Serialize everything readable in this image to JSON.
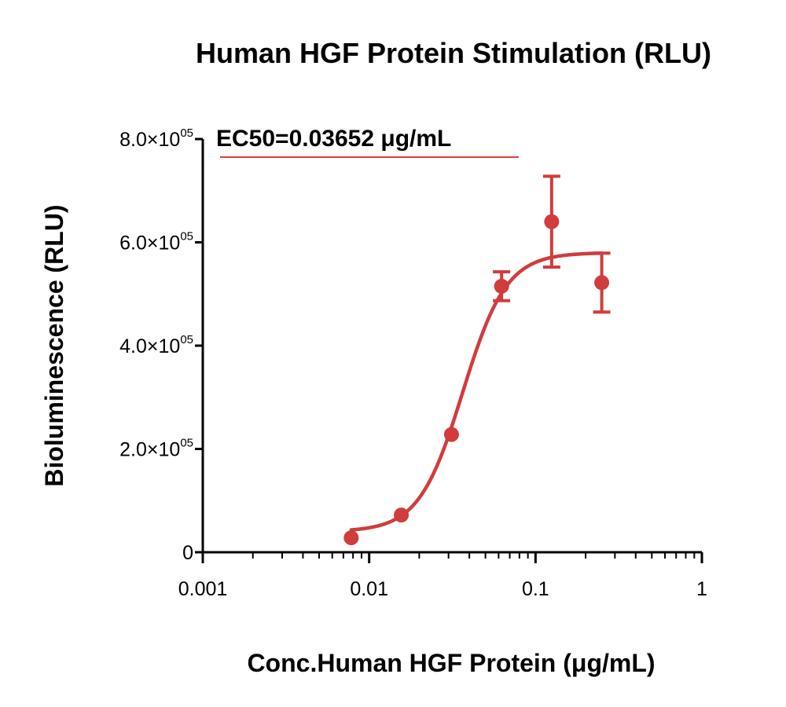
{
  "chart_data": {
    "type": "scatter",
    "title": "Human HGF Protein Stimulation (RLU)",
    "xlabel": "Conc.Human HGF Protein (μg/mL)",
    "ylabel": "Bioluminescence (RLU)",
    "x_scale": "log",
    "xlim": [
      0.001,
      1
    ],
    "ylim": [
      0,
      800000
    ],
    "x_ticks": [
      {
        "value": 0.001,
        "label": "0.001"
      },
      {
        "value": 0.01,
        "label": "0.01"
      },
      {
        "value": 0.1,
        "label": "0.1"
      },
      {
        "value": 1,
        "label": "1"
      }
    ],
    "y_ticks": [
      {
        "value": 0,
        "mantissa": "0",
        "exponent": ""
      },
      {
        "value": 200000,
        "mantissa": "2.0×10",
        "exponent": "05"
      },
      {
        "value": 400000,
        "mantissa": "4.0×10",
        "exponent": "05"
      },
      {
        "value": 600000,
        "mantissa": "6.0×10",
        "exponent": "05"
      },
      {
        "value": 800000,
        "mantissa": "8.0×10",
        "exponent": "05"
      }
    ],
    "series": [
      {
        "color": "#d13c3c",
        "points": [
          {
            "x": 0.0078,
            "y": 28000,
            "err": 0
          },
          {
            "x": 0.0156,
            "y": 72000,
            "err": 0
          },
          {
            "x": 0.03125,
            "y": 228000,
            "err": 0
          },
          {
            "x": 0.0625,
            "y": 515000,
            "err": 28000
          },
          {
            "x": 0.125,
            "y": 640000,
            "err": 88000
          },
          {
            "x": 0.25,
            "y": 522000,
            "err": 57000
          }
        ],
        "fit": {
          "model": "4PL",
          "bottom": 40000,
          "top": 580000,
          "ec50": 0.03652,
          "hill": 3.3
        }
      }
    ],
    "annotation": "EC50=0.03652 μg/mL",
    "grid": false
  }
}
